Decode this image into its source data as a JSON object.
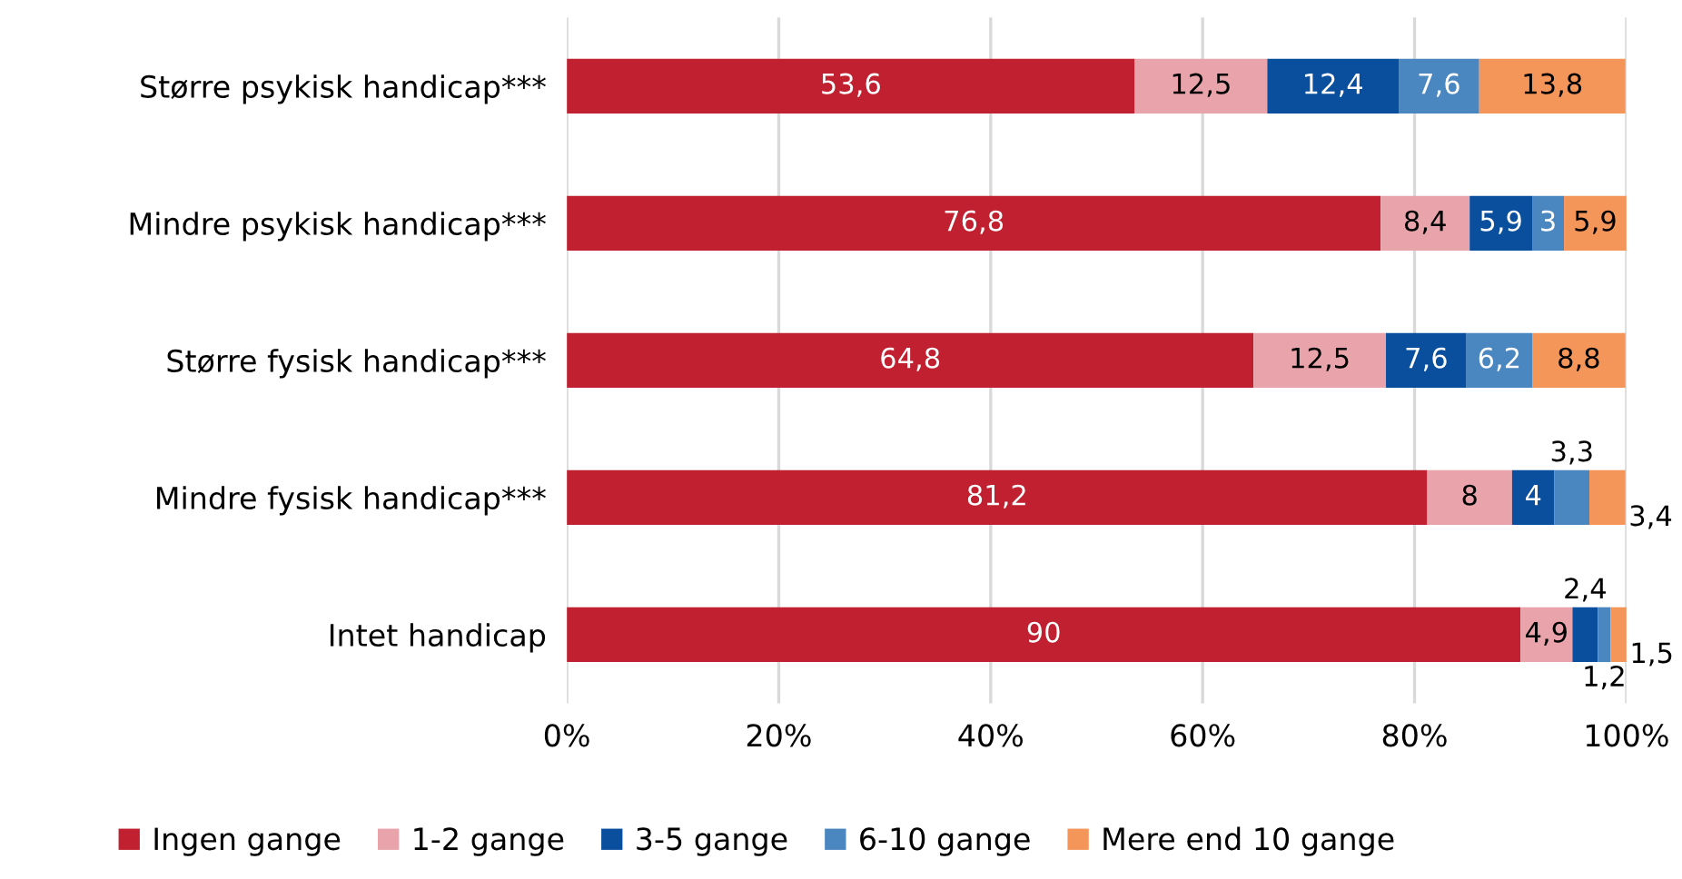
{
  "chart_data": {
    "type": "bar",
    "orientation": "horizontal",
    "stacked": true,
    "categories": [
      "Større psykisk handicap***",
      "Mindre psykisk handicap***",
      "Større fysisk handicap***",
      "Mindre fysisk handicap***",
      "Intet handicap"
    ],
    "series": [
      {
        "name": "Ingen gange",
        "color": "#c0202f",
        "values": [
          53.6,
          76.8,
          64.8,
          81.2,
          90
        ],
        "value_labels": [
          "53,6",
          "76,8",
          "64,8",
          "81,2",
          "90"
        ]
      },
      {
        "name": "1-2 gange",
        "color": "#e8a3ab",
        "values": [
          12.5,
          8.4,
          12.5,
          8,
          4.9
        ],
        "value_labels": [
          "12,5",
          "8,4",
          "12,5",
          "8",
          "4,9"
        ]
      },
      {
        "name": "3-5 gange",
        "color": "#0a4f9e",
        "values": [
          12.4,
          5.9,
          7.6,
          4,
          2.4
        ],
        "value_labels": [
          "12,4",
          "5,9",
          "7,6",
          "4",
          "2,4"
        ]
      },
      {
        "name": "6-10 gange",
        "color": "#4a86c0",
        "values": [
          7.6,
          3,
          6.2,
          3.3,
          1.2
        ],
        "value_labels": [
          "7,6",
          "3",
          "6,2",
          "3,3",
          "1,2"
        ]
      },
      {
        "name": "Mere end 10 gange",
        "color": "#f4955a",
        "values": [
          13.8,
          5.9,
          8.8,
          3.4,
          1.5
        ],
        "value_labels": [
          "13,8",
          "5,9",
          "8,8",
          "3,4",
          "1,5"
        ]
      }
    ],
    "xlim": [
      0,
      100
    ],
    "xticks": [
      {
        "value": 0,
        "label": "0%"
      },
      {
        "value": 20,
        "label": "20%"
      },
      {
        "value": 40,
        "label": "40%"
      },
      {
        "value": 60,
        "label": "60%"
      },
      {
        "value": 80,
        "label": "80%"
      },
      {
        "value": 100,
        "label": "100%"
      }
    ],
    "grid": "x",
    "legend": "bottom"
  }
}
